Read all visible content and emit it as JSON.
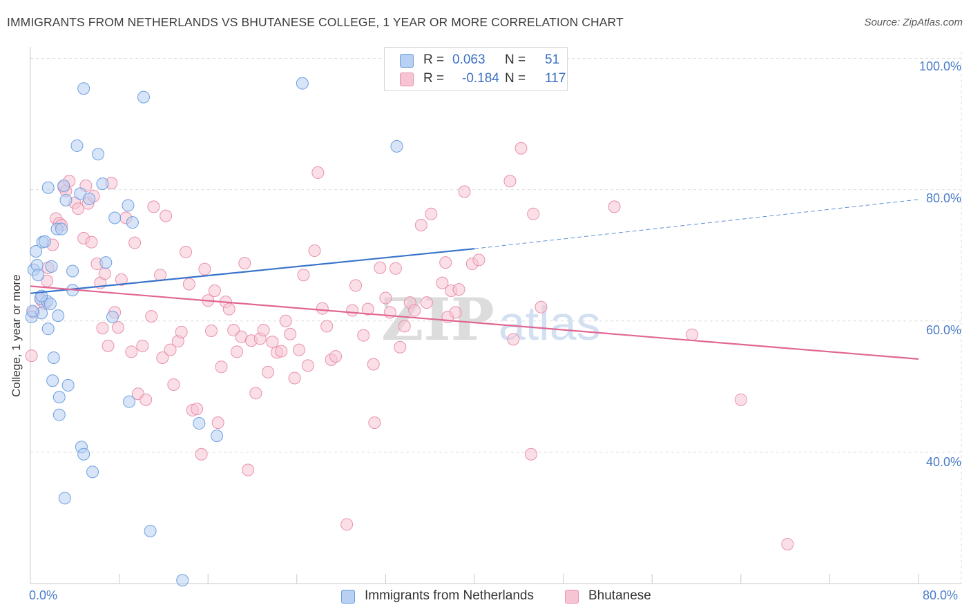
{
  "chart_data": {
    "type": "scatter",
    "title": "IMMIGRANTS FROM NETHERLANDS VS BHUTANESE COLLEGE, 1 YEAR OR MORE CORRELATION CHART",
    "source": "Source: ZipAtlas.com",
    "xlabel": "",
    "ylabel": "College, 1 year or more",
    "xlim": [
      0,
      80
    ],
    "ylim": [
      20,
      101
    ],
    "x_tick_labels": [
      "0.0%",
      "80.0%"
    ],
    "y_tick_labels": [
      {
        "value": 100,
        "label": "100.0%"
      },
      {
        "value": 80,
        "label": "80.0%"
      },
      {
        "value": 60,
        "label": "60.0%"
      },
      {
        "value": 40,
        "label": "40.0%"
      }
    ],
    "grid": true,
    "legend": {
      "placement": "top-center",
      "entries": [
        {
          "r_label": "R =",
          "r_value": "0.063",
          "n_label": "N =",
          "n_value": "51"
        },
        {
          "r_label": "R =",
          "r_value": "-0.184",
          "n_label": "N =",
          "n_value": "117"
        }
      ]
    },
    "watermark": "ZIPatlas",
    "series": [
      {
        "name": "Immigrants from Netherlands",
        "color": "#6d9fe0",
        "fill": "#b8d0f3",
        "trend": {
          "x0": 0,
          "y0": 64.2,
          "x1": 40,
          "y1": 71.0,
          "x_dashed_end": 80,
          "y_dashed_end": 78.5,
          "color": "#3873cc"
        },
        "points": [
          [
            0.3,
            67.8
          ],
          [
            0.5,
            70.6
          ],
          [
            0.6,
            68.5
          ],
          [
            0.7,
            67.0
          ],
          [
            0.9,
            63.4
          ],
          [
            1.0,
            61.2
          ],
          [
            1.1,
            72.0
          ],
          [
            1.3,
            72.1
          ],
          [
            1.5,
            63.0
          ],
          [
            1.6,
            58.8
          ],
          [
            1.6,
            80.3
          ],
          [
            1.8,
            62.6
          ],
          [
            1.9,
            68.3
          ],
          [
            2.0,
            50.9
          ],
          [
            2.1,
            54.4
          ],
          [
            2.4,
            74.0
          ],
          [
            2.5,
            60.8
          ],
          [
            2.6,
            48.4
          ],
          [
            2.6,
            45.7
          ],
          [
            2.8,
            74.0
          ],
          [
            3.0,
            80.6
          ],
          [
            3.1,
            33.0
          ],
          [
            3.2,
            78.4
          ],
          [
            3.4,
            50.2
          ],
          [
            3.8,
            64.7
          ],
          [
            3.8,
            67.6
          ],
          [
            4.2,
            86.7
          ],
          [
            4.5,
            79.4
          ],
          [
            4.6,
            40.8
          ],
          [
            4.8,
            95.4
          ],
          [
            4.8,
            39.7
          ],
          [
            5.3,
            78.6
          ],
          [
            5.6,
            37.0
          ],
          [
            6.1,
            85.4
          ],
          [
            6.5,
            80.9
          ],
          [
            6.8,
            68.9
          ],
          [
            7.4,
            60.6
          ],
          [
            7.6,
            75.7
          ],
          [
            8.8,
            77.6
          ],
          [
            8.9,
            47.7
          ],
          [
            9.2,
            75.0
          ],
          [
            10.2,
            94.1
          ],
          [
            10.8,
            28.0
          ],
          [
            13.7,
            20.5
          ],
          [
            15.2,
            44.4
          ],
          [
            16.8,
            42.5
          ],
          [
            24.5,
            96.2
          ],
          [
            33.0,
            86.6
          ],
          [
            0.1,
            60.6
          ],
          [
            0.2,
            61.5
          ],
          [
            1.0,
            63.8
          ]
        ]
      },
      {
        "name": "Bhutanese",
        "color": "#e890ad",
        "fill": "#f7c4d4",
        "trend": {
          "x0": 0,
          "y0": 65.3,
          "x1": 80,
          "y1": 54.2,
          "color": "#e06692"
        },
        "points": [
          [
            0.1,
            54.7
          ],
          [
            0.3,
            61.3
          ],
          [
            1.0,
            63.1
          ],
          [
            1.3,
            62.6
          ],
          [
            1.5,
            66.1
          ],
          [
            1.6,
            68.1
          ],
          [
            2.0,
            71.6
          ],
          [
            2.3,
            75.6
          ],
          [
            2.6,
            74.9
          ],
          [
            2.8,
            74.6
          ],
          [
            3.0,
            80.4
          ],
          [
            3.2,
            79.8
          ],
          [
            3.5,
            81.3
          ],
          [
            4.0,
            78.0
          ],
          [
            4.3,
            77.1
          ],
          [
            4.8,
            72.6
          ],
          [
            5.0,
            80.6
          ],
          [
            5.2,
            77.9
          ],
          [
            5.5,
            72.0
          ],
          [
            5.7,
            79.0
          ],
          [
            6.0,
            68.7
          ],
          [
            6.3,
            65.8
          ],
          [
            6.5,
            58.9
          ],
          [
            6.7,
            67.2
          ],
          [
            7.0,
            56.2
          ],
          [
            7.3,
            81.0
          ],
          [
            7.6,
            61.3
          ],
          [
            7.9,
            59.0
          ],
          [
            8.2,
            66.3
          ],
          [
            8.6,
            75.7
          ],
          [
            9.1,
            55.3
          ],
          [
            9.4,
            71.9
          ],
          [
            9.7,
            48.9
          ],
          [
            10.1,
            56.2
          ],
          [
            10.4,
            48.0
          ],
          [
            10.9,
            60.7
          ],
          [
            11.1,
            77.4
          ],
          [
            11.7,
            67.0
          ],
          [
            11.9,
            54.4
          ],
          [
            12.2,
            76.0
          ],
          [
            12.6,
            55.6
          ],
          [
            12.9,
            50.3
          ],
          [
            13.3,
            56.9
          ],
          [
            13.6,
            58.3
          ],
          [
            14.0,
            70.5
          ],
          [
            14.3,
            65.6
          ],
          [
            14.6,
            46.4
          ],
          [
            15.0,
            46.6
          ],
          [
            15.4,
            39.7
          ],
          [
            15.7,
            67.9
          ],
          [
            16.0,
            63.1
          ],
          [
            16.3,
            58.5
          ],
          [
            16.6,
            64.6
          ],
          [
            16.9,
            44.5
          ],
          [
            17.2,
            53.0
          ],
          [
            17.6,
            62.9
          ],
          [
            17.9,
            61.8
          ],
          [
            18.3,
            58.6
          ],
          [
            18.6,
            55.3
          ],
          [
            19.0,
            57.6
          ],
          [
            19.3,
            68.8
          ],
          [
            19.6,
            37.3
          ],
          [
            19.9,
            57.0
          ],
          [
            20.3,
            49.0
          ],
          [
            20.7,
            57.3
          ],
          [
            21.0,
            58.6
          ],
          [
            21.4,
            52.2
          ],
          [
            21.8,
            56.8
          ],
          [
            22.2,
            55.2
          ],
          [
            22.6,
            55.4
          ],
          [
            23.0,
            60.0
          ],
          [
            23.4,
            58.0
          ],
          [
            23.8,
            51.3
          ],
          [
            24.2,
            55.6
          ],
          [
            24.6,
            67.0
          ],
          [
            25.0,
            53.2
          ],
          [
            25.6,
            70.7
          ],
          [
            25.9,
            82.6
          ],
          [
            26.3,
            61.9
          ],
          [
            26.7,
            59.2
          ],
          [
            27.1,
            54.1
          ],
          [
            27.5,
            54.6
          ],
          [
            28.5,
            29.0
          ],
          [
            29.0,
            61.6
          ],
          [
            29.3,
            65.4
          ],
          [
            30.0,
            57.8
          ],
          [
            30.4,
            61.8
          ],
          [
            30.9,
            53.4
          ],
          [
            31.0,
            44.5
          ],
          [
            31.5,
            68.1
          ],
          [
            32.0,
            63.5
          ],
          [
            32.4,
            61.3
          ],
          [
            32.9,
            68.0
          ],
          [
            33.3,
            56.0
          ],
          [
            33.7,
            59.2
          ],
          [
            34.2,
            62.8
          ],
          [
            34.6,
            61.6
          ],
          [
            35.2,
            74.6
          ],
          [
            35.7,
            62.8
          ],
          [
            36.1,
            76.3
          ],
          [
            37.1,
            65.8
          ],
          [
            37.4,
            68.9
          ],
          [
            37.6,
            60.6
          ],
          [
            37.9,
            64.6
          ],
          [
            38.3,
            61.3
          ],
          [
            38.6,
            64.8
          ],
          [
            39.1,
            79.7
          ],
          [
            39.8,
            68.7
          ],
          [
            40.4,
            69.3
          ],
          [
            43.2,
            81.3
          ],
          [
            43.5,
            57.2
          ],
          [
            44.2,
            86.3
          ],
          [
            45.1,
            39.7
          ],
          [
            45.3,
            76.3
          ],
          [
            46.0,
            62.1
          ],
          [
            52.6,
            77.4
          ],
          [
            59.6,
            57.9
          ],
          [
            64.0,
            48.0
          ],
          [
            68.2,
            26.0
          ]
        ]
      }
    ]
  },
  "axes": {
    "x_left_label": "0.0%",
    "x_right_label": "80.0%"
  }
}
